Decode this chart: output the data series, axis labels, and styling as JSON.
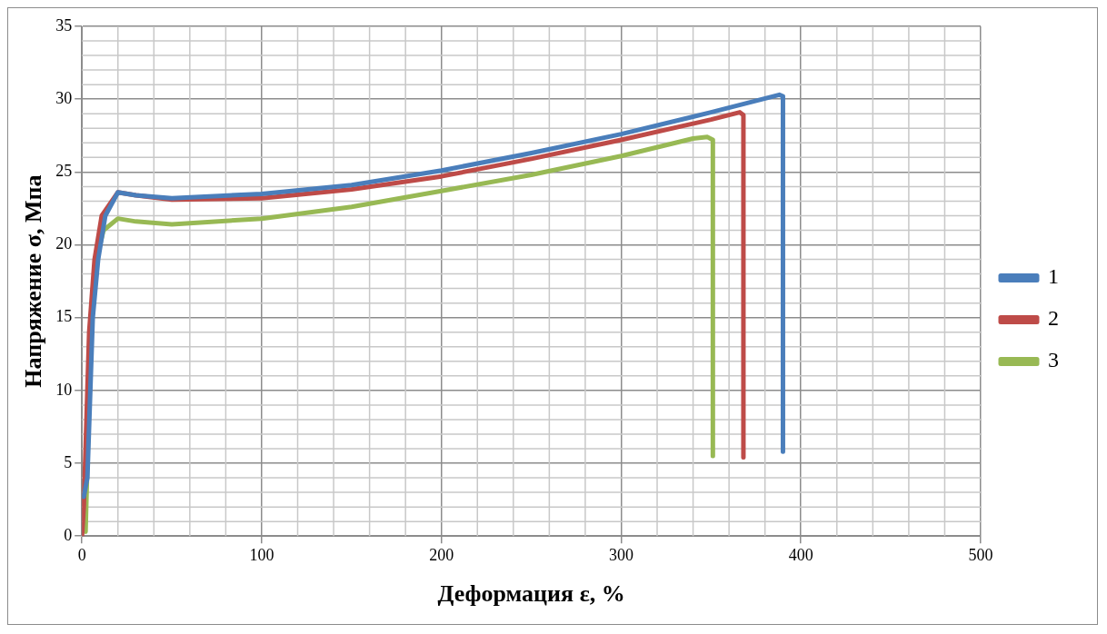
{
  "chart_data": {
    "type": "line",
    "xlabel": "Деформация ε, %",
    "ylabel": "Напряжение σ, Мпа",
    "xlim": [
      0,
      500
    ],
    "xticks": [
      0,
      100,
      200,
      300,
      400,
      500
    ],
    "ylim": [
      0,
      35
    ],
    "yticks": [
      0,
      5,
      10,
      15,
      20,
      25,
      30,
      35
    ],
    "grid": true,
    "legend": "right",
    "marker": "none",
    "line_style": "solid",
    "series": [
      {
        "name": "1",
        "color": "#4a7ebb",
        "x": [
          1,
          3,
          6,
          9,
          13,
          20,
          30,
          50,
          100,
          150,
          200,
          250,
          300,
          350,
          388,
          390,
          390
        ],
        "values": [
          2.7,
          4,
          15,
          19,
          22,
          23.6,
          23.4,
          23.2,
          23.5,
          24.1,
          25.1,
          26.3,
          27.6,
          29.1,
          30.3,
          30.2,
          5.8
        ]
      },
      {
        "name": "2",
        "color": "#be4b48",
        "x": [
          0,
          1,
          4,
          7,
          11,
          20,
          30,
          50,
          100,
          150,
          200,
          250,
          300,
          350,
          366,
          368,
          368
        ],
        "values": [
          0,
          2,
          14,
          19,
          22,
          23.6,
          23.4,
          23.1,
          23.2,
          23.8,
          24.7,
          25.9,
          27.2,
          28.6,
          29.1,
          28.9,
          5.4
        ]
      },
      {
        "name": "3",
        "color": "#98b954",
        "x": [
          2,
          3,
          5,
          8,
          12,
          20,
          30,
          50,
          100,
          150,
          200,
          250,
          300,
          340,
          348,
          351,
          351
        ],
        "values": [
          0.3,
          5,
          14,
          19,
          21,
          21.8,
          21.6,
          21.4,
          21.8,
          22.6,
          23.7,
          24.8,
          26.1,
          27.3,
          27.4,
          27.2,
          5.5
        ]
      }
    ]
  }
}
